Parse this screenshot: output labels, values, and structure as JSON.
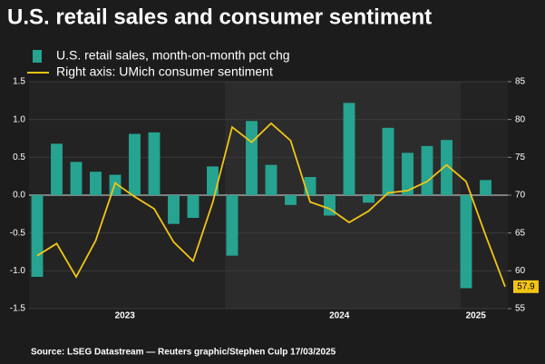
{
  "chart_data": {
    "type": "bar_line",
    "title": "U.S. retail sales and consumer sentiment",
    "source": "Source: LSEG Datastream — Reuters graphic/Stephen Culp 17/03/2025",
    "categories": [
      null,
      null,
      null,
      null,
      null,
      "2023",
      null,
      null,
      null,
      null,
      null,
      null,
      null,
      null,
      null,
      null,
      "2024",
      null,
      null,
      null,
      null,
      null,
      null,
      "2025",
      null
    ],
    "series": [
      {
        "name": "U.S. retail sales, month-on-month pct chg",
        "color": "#26a391",
        "axis": "y",
        "values": [
          -1.08,
          0.68,
          0.44,
          0.31,
          0.27,
          0.81,
          0.83,
          -0.38,
          -0.3,
          0.38,
          -0.8,
          0.98,
          0.4,
          -0.13,
          0.24,
          -0.27,
          1.22,
          -0.1,
          0.89,
          0.56,
          0.65,
          0.73,
          -1.23,
          0.2,
          null
        ]
      },
      {
        "name": "Right axis: UMich consumer sentiment",
        "color": "#f2c416",
        "axis": "y2",
        "values": [
          62.0,
          63.6,
          59.2,
          64.0,
          71.6,
          69.8,
          68.2,
          63.8,
          61.3,
          69.0,
          79.0,
          77.0,
          79.5,
          77.2,
          69.1,
          68.2,
          66.4,
          67.9,
          70.3,
          70.6,
          71.8,
          74.0,
          71.8,
          64.7,
          57.9
        ]
      }
    ],
    "ylim": [
      -1.5,
      1.5
    ],
    "yticks": [
      1.5,
      {
        "value": 1.0,
        "label": "1.0"
      },
      0.5,
      {
        "value": 0,
        "label": "0.0"
      },
      -0.5,
      {
        "value": -1.0,
        "label": "-1.0"
      },
      -1.5
    ],
    "y2lim": [
      55,
      85
    ],
    "y2ticks": [
      85,
      80,
      75,
      70,
      65,
      60,
      55
    ],
    "grid": true
  }
}
